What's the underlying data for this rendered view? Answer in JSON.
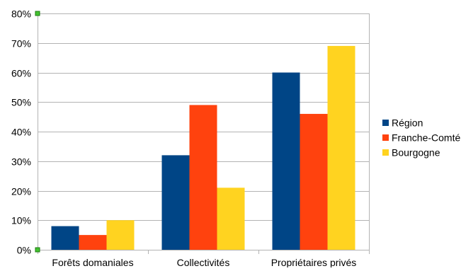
{
  "chart_data": {
    "type": "bar",
    "categories": [
      "Forêts domaniales",
      "Collectivités",
      "Propriétaires privés"
    ],
    "series": [
      {
        "name": "Région",
        "color": "#004586",
        "values": [
          8,
          32,
          60
        ]
      },
      {
        "name": "Franche-Comté",
        "color": "#ff420e",
        "values": [
          5,
          49,
          46
        ]
      },
      {
        "name": "Bourgogne",
        "color": "#ffd320",
        "values": [
          10,
          21,
          69
        ]
      }
    ],
    "ylim": [
      0,
      80
    ],
    "ytick_step": 10,
    "ytick_labels": [
      "0%",
      "10%",
      "20%",
      "30%",
      "40%",
      "50%",
      "60%",
      "70%",
      "80%"
    ],
    "grid": true,
    "legend_position": "right",
    "title": "",
    "xlabel": "",
    "ylabel": ""
  }
}
